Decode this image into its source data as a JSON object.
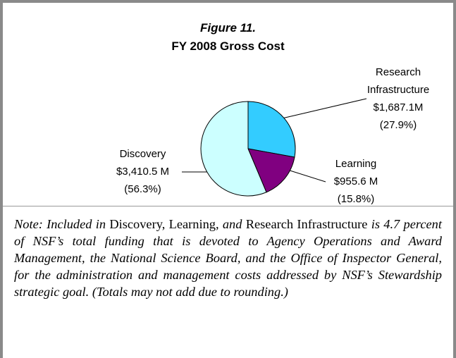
{
  "chart_data": {
    "type": "pie",
    "title": "Figure 11.",
    "subtitle": "FY 2008 Gross Cost",
    "categories": [
      "Research Infrastructure",
      "Learning",
      "Discovery"
    ],
    "values": [
      1687.1,
      955.6,
      3410.5
    ],
    "value_labels": [
      "$1,687.1M",
      "$955.6 M",
      "$3,410.5 M"
    ],
    "percent_labels": [
      "(27.9%)",
      "(15.8%)",
      "(56.3%)"
    ],
    "colors": [
      "#33ccff",
      "#800080",
      "#ccffff"
    ]
  },
  "note": [
    {
      "text": "Note: Included in ",
      "italic": true
    },
    {
      "text": "Discovery, Learning, ",
      "italic": false
    },
    {
      "text": "and ",
      "italic": true
    },
    {
      "text": "Research Infrastructure ",
      "italic": false
    },
    {
      "text": "is 4.7 percent of NSF’s total funding that is devoted to Agency Operations and Award Management, the National Science Board, and the Office of Inspector General, for the administration and management costs addressed by NSF’s Stewardship strategic goal. (Totals may not add due to rounding.)",
      "italic": true
    }
  ]
}
